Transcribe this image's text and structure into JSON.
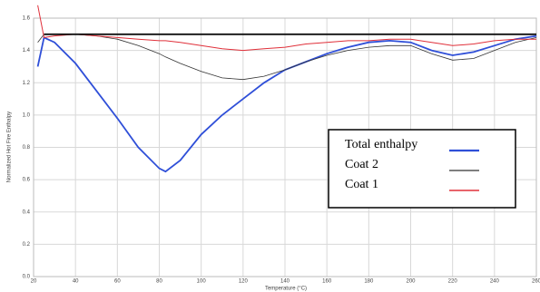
{
  "chart_data": {
    "type": "line",
    "xlabel": "Temperature (°C)",
    "ylabel": "Normalized Hot Fire Enthalpy",
    "x": [
      22,
      25,
      30,
      40,
      50,
      60,
      70,
      80,
      83,
      90,
      100,
      110,
      120,
      130,
      140,
      150,
      160,
      170,
      180,
      190,
      200,
      210,
      220,
      230,
      240,
      250,
      260
    ],
    "series": [
      {
        "name": "Total enthalpy",
        "color": "#2f4fd8",
        "width": 1.8,
        "values": [
          1.3,
          1.48,
          1.45,
          1.32,
          1.15,
          0.98,
          0.8,
          0.67,
          0.65,
          0.72,
          0.88,
          1.0,
          1.1,
          1.2,
          1.28,
          1.33,
          1.38,
          1.42,
          1.45,
          1.46,
          1.45,
          1.4,
          1.37,
          1.39,
          1.43,
          1.47,
          1.49
        ]
      },
      {
        "name": "Coat 2",
        "color": "#333333",
        "width": 0.8,
        "values": [
          1.45,
          1.5,
          1.5,
          1.5,
          1.49,
          1.47,
          1.43,
          1.38,
          1.36,
          1.32,
          1.27,
          1.23,
          1.22,
          1.24,
          1.28,
          1.33,
          1.37,
          1.4,
          1.42,
          1.43,
          1.43,
          1.38,
          1.34,
          1.35,
          1.4,
          1.45,
          1.48
        ]
      },
      {
        "name": "Coat 1",
        "color": "#e0303a",
        "width": 1,
        "values": [
          1.68,
          1.48,
          1.49,
          1.5,
          1.49,
          1.48,
          1.47,
          1.46,
          1.46,
          1.45,
          1.43,
          1.41,
          1.4,
          1.41,
          1.42,
          1.44,
          1.45,
          1.46,
          1.46,
          1.47,
          1.47,
          1.45,
          1.43,
          1.44,
          1.46,
          1.47,
          1.47
        ]
      },
      {
        "color": "#111111",
        "width": 1.8,
        "values": [
          null,
          1.5,
          1.5,
          1.5,
          1.5,
          1.5,
          1.5,
          1.5,
          1.5,
          1.5,
          1.5,
          1.5,
          1.5,
          1.5,
          1.5,
          1.5,
          1.5,
          1.5,
          1.5,
          1.5,
          1.5,
          1.5,
          1.5,
          1.5,
          1.5,
          1.5,
          1.5
        ]
      }
    ],
    "xlim": [
      20,
      260
    ],
    "xticks": [
      20,
      40,
      60,
      80,
      100,
      120,
      140,
      160,
      180,
      200,
      220,
      240,
      260
    ],
    "ylim": [
      0,
      1.6
    ],
    "yticks": [
      {
        "value": 0,
        "label": "0.0"
      },
      0.2,
      0.4,
      0.6,
      0.8,
      {
        "value": 1,
        "label": "1.0"
      },
      1.2,
      1.4,
      1.6
    ],
    "grid": true
  }
}
